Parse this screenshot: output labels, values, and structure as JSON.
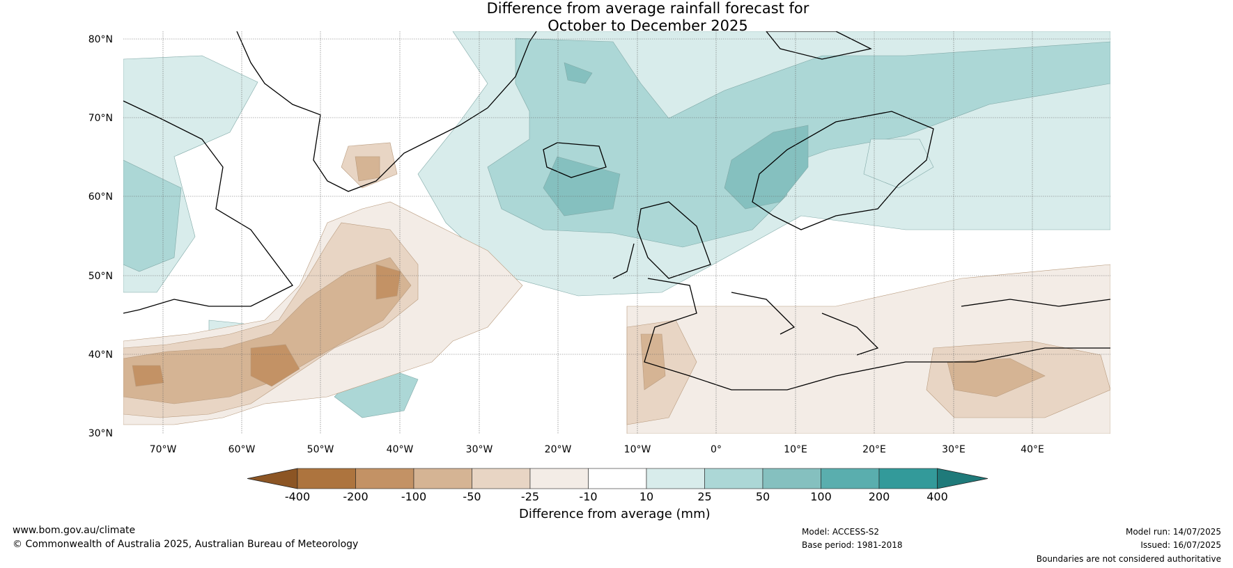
{
  "title_line1": "Difference from average rainfall forecast for",
  "title_line2": "October to December 2025",
  "lat_ticks": [
    "80°N",
    "70°N",
    "60°N",
    "50°N",
    "40°N",
    "30°N"
  ],
  "lon_ticks": [
    "70°W",
    "60°W",
    "50°W",
    "40°W",
    "30°W",
    "20°W",
    "10°W",
    "0°",
    "10°E",
    "20°E",
    "30°E",
    "40°E"
  ],
  "legend": {
    "tick_labels": [
      "-400",
      "-200",
      "-100",
      "-50",
      "-25",
      "-10",
      "10",
      "25",
      "50",
      "100",
      "200",
      "400"
    ],
    "colors": [
      "#8c5524",
      "#ad743e",
      "#c39265",
      "#d5b494",
      "#e8d5c4",
      "#f3ece6",
      "#ffffff",
      "#d8eceb",
      "#acd7d6",
      "#85c0bf",
      "#5aaeae",
      "#339a9a",
      "#1f7a7a"
    ],
    "label": "Difference from average (mm)"
  },
  "footer": {
    "website": "www.bom.gov.au/climate",
    "copyright": "© Commonwealth of Australia 2025, Australian Bureau of Meteorology",
    "model": "Model: ACCESS-S2",
    "base_period": "Base period: 1981-2018",
    "model_run": "Model run: 14/07/2025",
    "issued": "Issued: 16/07/2025",
    "disclaimer": "Boundaries are not considered authoritative"
  }
}
